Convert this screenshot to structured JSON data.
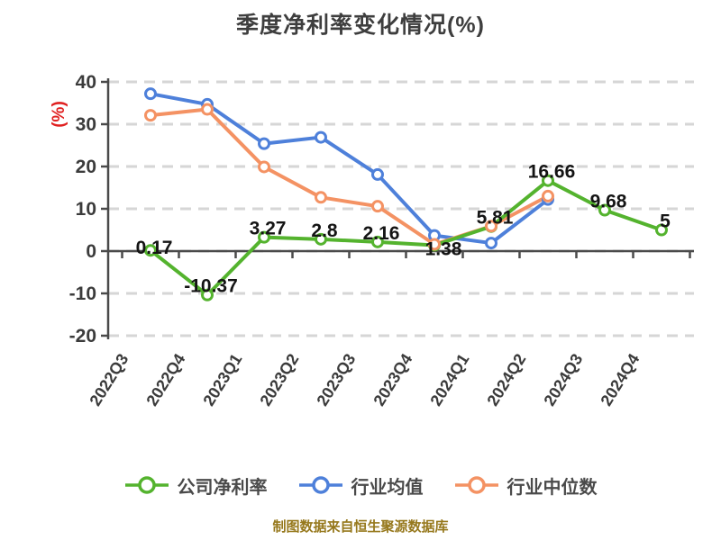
{
  "title": "季度净利率变化情况(%)",
  "footer": "制图数据来自恒生聚源数据库",
  "colors": {
    "company": "#54b32e",
    "industry_avg": "#4e80da",
    "industry_median": "#f49263",
    "grid": "#d6d6d6",
    "axis": "#4a4a4a",
    "tick_text": "#3b3b3b",
    "data_label": "#141414",
    "title_text": "#3e3e3e",
    "legend_text": "#4a4a4a",
    "footer_text": "#96781c",
    "y_unit_red": "#e02020",
    "marker_fill": "#ffffff"
  },
  "chart_data": {
    "type": "line",
    "title": "季度净利率变化情况(%)",
    "categories": [
      "2022Q3",
      "2022Q4",
      "2023Q1",
      "2023Q2",
      "2023Q3",
      "2023Q4",
      "2024Q1",
      "2024Q2",
      "2024Q3",
      "2024Q4"
    ],
    "series": [
      {
        "name": "公司净利率",
        "color_key": "company",
        "values": [
          0.17,
          -10.37,
          3.27,
          2.8,
          2.16,
          1.38,
          5.81,
          16.66,
          9.68,
          5
        ],
        "data_labels": [
          "0.17",
          "-10.37",
          "3.27",
          "2.8",
          "2.16",
          "1.38",
          "5.81",
          "16.66",
          "9.68",
          "5"
        ]
      },
      {
        "name": "行业均值",
        "color_key": "industry_avg",
        "values": [
          37.2,
          34.7,
          25.4,
          26.9,
          18.1,
          3.7,
          1.9,
          12.2,
          null,
          null
        ],
        "data_labels": null
      },
      {
        "name": "行业中位数",
        "color_key": "industry_median",
        "values": [
          32.1,
          33.5,
          19.9,
          12.7,
          10.6,
          1.6,
          5.9,
          13,
          null,
          null
        ],
        "data_labels": null
      }
    ],
    "ylabel": "(%)",
    "ylim": [
      -20,
      40
    ],
    "yticks": [
      40,
      30,
      20,
      10,
      0,
      -10,
      -20
    ],
    "grid": "horizontal-dashed",
    "legend_position": "bottom",
    "x_tick_rotation": -58
  },
  "legend": {
    "items": [
      {
        "label": "公司净利率",
        "color_key": "company"
      },
      {
        "label": "行业均值",
        "color_key": "industry_avg"
      },
      {
        "label": "行业中位数",
        "color_key": "industry_median"
      }
    ]
  }
}
